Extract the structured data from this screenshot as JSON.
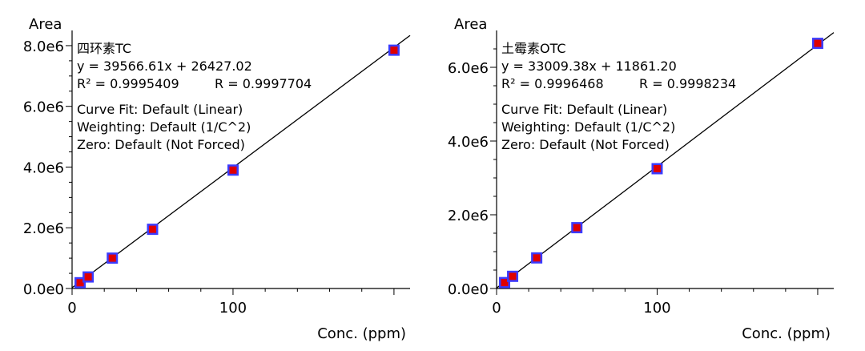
{
  "chart_data": [
    {
      "type": "scatter",
      "compound": "四环素TC",
      "equation": "y = 39566.61x + 26427.02",
      "r_squared": "R² = 0.9995409",
      "r_value": "R = 0.9997704",
      "curve_fit": "Curve Fit: Default (Linear)",
      "weighting": "Weighting: Default (1/C^2)",
      "zero": "Zero: Default (Not Forced)",
      "ylabel": "Area",
      "xlabel": "Conc. (ppm)",
      "xlim": [
        0,
        210
      ],
      "ylim": [
        0,
        8500000
      ],
      "x_major_ticks": [
        0,
        100
      ],
      "x_tick_labels": [
        "0",
        "100"
      ],
      "y_major_ticks": [
        0,
        2000000,
        4000000,
        6000000,
        8000000
      ],
      "y_tick_labels": [
        "0.0e0",
        "2.0e6",
        "4.0e6",
        "6.0e6",
        "8.0e6"
      ],
      "slope": 39566.61,
      "intercept": 26427.02,
      "fit_x_range": [
        0,
        210
      ],
      "x": [
        5,
        10,
        25,
        50,
        100,
        200
      ],
      "y": [
        190000,
        380000,
        1000000,
        1950000,
        3900000,
        7850000
      ],
      "marker_colors": {
        "outer": "#3b3bff",
        "inner": "#e00000"
      }
    },
    {
      "type": "scatter",
      "compound": "土霉素OTC",
      "equation": "y = 33009.38x + 11861.20",
      "r_squared": "R² = 0.9996468",
      "r_value": "R = 0.9998234",
      "curve_fit": "Curve Fit: Default (Linear)",
      "weighting": "Weighting: Default (1/C^2)",
      "zero": "Zero: Default (Not Forced)",
      "ylabel": "Area",
      "xlabel": "Conc. (ppm)",
      "xlim": [
        0,
        210
      ],
      "ylim": [
        0,
        7000000
      ],
      "x_major_ticks": [
        0,
        100
      ],
      "x_tick_labels": [
        "0",
        "100"
      ],
      "y_major_ticks": [
        0,
        2000000,
        4000000,
        6000000
      ],
      "y_tick_labels": [
        "0.0e0",
        "2.0e6",
        "4.0e6",
        "6.0e6"
      ],
      "slope": 33009.38,
      "intercept": 11861.2,
      "fit_x_range": [
        0,
        210
      ],
      "x": [
        5,
        10,
        25,
        50,
        100,
        200
      ],
      "y": [
        160000,
        330000,
        830000,
        1650000,
        3250000,
        6650000
      ],
      "marker_colors": {
        "outer": "#3b3bff",
        "inner": "#e00000"
      }
    }
  ]
}
